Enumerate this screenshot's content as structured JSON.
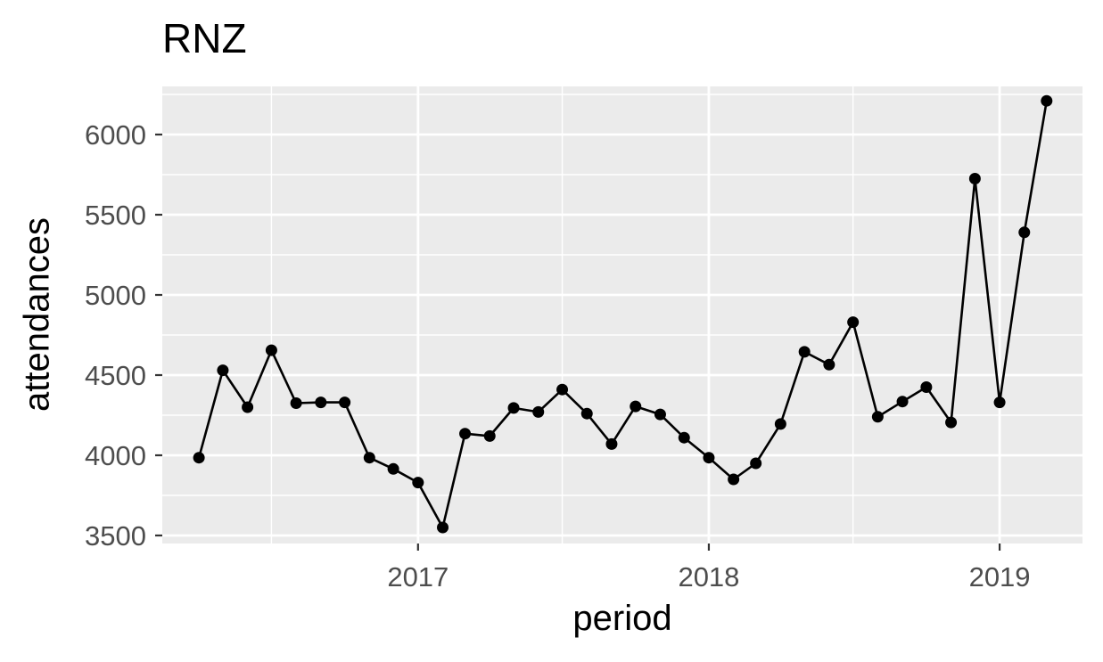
{
  "chart_data": {
    "type": "line",
    "title": "RNZ",
    "xlabel": "period",
    "ylabel": "attendances",
    "x_tick_labels": [
      "2017",
      "2018",
      "2019"
    ],
    "y_tick_labels": [
      "3500",
      "4000",
      "4500",
      "5000",
      "5500",
      "6000"
    ],
    "ylim": [
      3450,
      6300
    ],
    "xlim": [
      "2016-02-15",
      "2019-04-15"
    ],
    "grid": true,
    "background_color": "#EBEBEB",
    "grid_color": "#FFFFFF",
    "line_color": "#000000",
    "series": [
      {
        "x": [
          "2016-04",
          "2016-05",
          "2016-06",
          "2016-07",
          "2016-08",
          "2016-09",
          "2016-10",
          "2016-11",
          "2016-12",
          "2017-01",
          "2017-02",
          "2017-03",
          "2017-04",
          "2017-05",
          "2017-06",
          "2017-07",
          "2017-08",
          "2017-09",
          "2017-10",
          "2017-11",
          "2017-12",
          "2018-01",
          "2018-02",
          "2018-03",
          "2018-04",
          "2018-05",
          "2018-06",
          "2018-07",
          "2018-08",
          "2018-09",
          "2018-10",
          "2018-11",
          "2018-12",
          "2019-01",
          "2019-02",
          "2019-03"
        ],
        "values": [
          3985,
          4530,
          4300,
          4655,
          4325,
          4330,
          4330,
          3985,
          3915,
          3830,
          3550,
          4135,
          4120,
          4295,
          4270,
          4410,
          4260,
          4070,
          4305,
          4255,
          4110,
          3985,
          3850,
          3950,
          4195,
          4645,
          4565,
          4830,
          4240,
          4335,
          4425,
          4205,
          5725,
          4330,
          5390,
          6210
        ]
      }
    ]
  }
}
